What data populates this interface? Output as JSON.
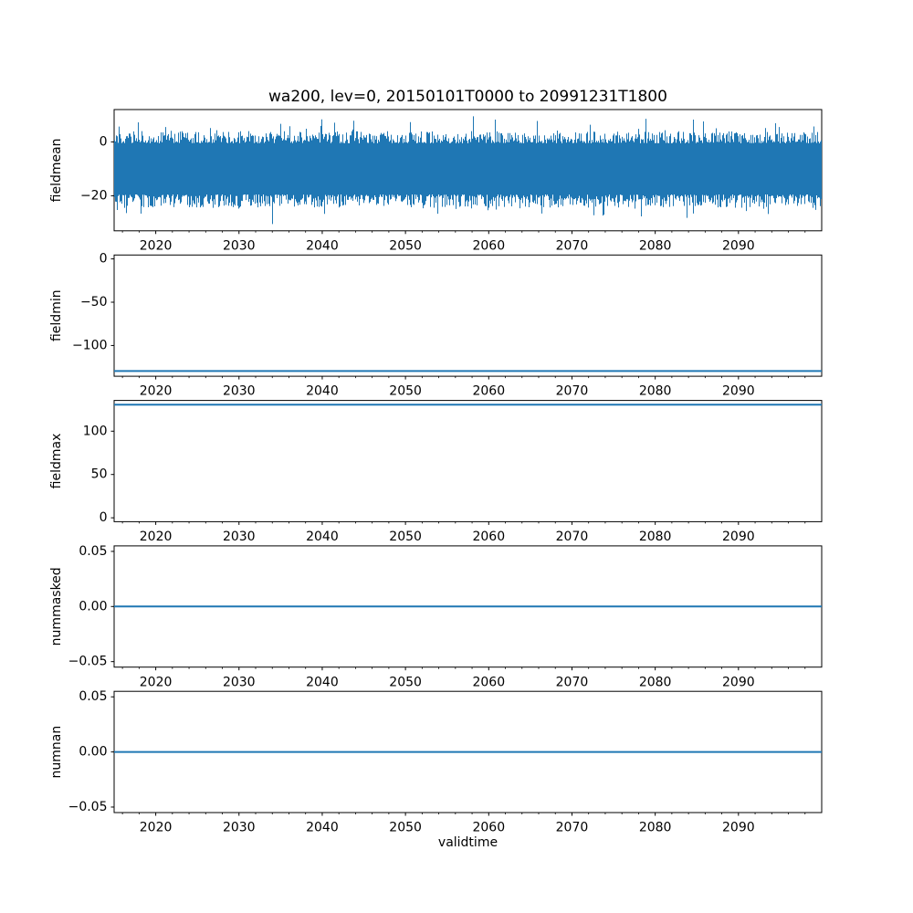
{
  "figure": {
    "title": "wa200, lev=0, 20150101T0000 to 20991231T1800",
    "xlabel": "validtime",
    "background": "#ffffff",
    "line_color": "#1f77b4",
    "axis_color": "#000000",
    "xlim": [
      2015,
      2100
    ],
    "xticks": [
      {
        "v": 2020,
        "label": "2020"
      },
      {
        "v": 2030,
        "label": "2030"
      },
      {
        "v": 2040,
        "label": "2040"
      },
      {
        "v": 2050,
        "label": "2050"
      },
      {
        "v": 2060,
        "label": "2060"
      },
      {
        "v": 2070,
        "label": "2070"
      },
      {
        "v": 2080,
        "label": "2080"
      },
      {
        "v": 2090,
        "label": "2090"
      }
    ],
    "xminor_step": 2,
    "grid": false,
    "legend": "none"
  },
  "chart_data": [
    {
      "type": "line",
      "name": "fieldmean",
      "ylabel": "fieldmean",
      "ylim": [
        -33,
        12
      ],
      "yticks": [
        {
          "v": 0,
          "label": "0"
        },
        {
          "v": -20,
          "label": "−20"
        }
      ],
      "series": {
        "kind": "noise-band",
        "seed": 20150101,
        "x_range": [
          2015,
          2100
        ],
        "core_band": [
          -19.5,
          -0.5
        ],
        "typical_high": [
          -0.5,
          4.0
        ],
        "typical_low": [
          -24.5,
          -19.5
        ],
        "spike_max": 9.5,
        "spike_min": -30.5,
        "spike_prob": 0.07,
        "description": "6-hourly fieldmean noise, 2015-01-01T00 to 2099-12-31T18, mean ≈ −10"
      }
    },
    {
      "type": "line",
      "name": "fieldmin",
      "ylabel": "fieldmin",
      "ylim": [
        -135.5,
        4.5
      ],
      "yticks": [
        {
          "v": 0,
          "label": "0"
        },
        {
          "v": -50,
          "label": "−50"
        },
        {
          "v": -100,
          "label": "−100"
        }
      ],
      "series": {
        "kind": "constant",
        "value": -129.4
      }
    },
    {
      "type": "line",
      "name": "fieldmax",
      "ylabel": "fieldmax",
      "ylim": [
        -4.5,
        135.5
      ],
      "yticks": [
        {
          "v": 100,
          "label": "100"
        },
        {
          "v": 50,
          "label": "50"
        },
        {
          "v": 0,
          "label": "0"
        }
      ],
      "series": {
        "kind": "constant",
        "value": 130.6
      }
    },
    {
      "type": "line",
      "name": "nummasked",
      "ylabel": "nummasked",
      "ylim": [
        -0.055,
        0.055
      ],
      "yticks": [
        {
          "v": 0.05,
          "label": "0.05"
        },
        {
          "v": 0.0,
          "label": "0.00"
        },
        {
          "v": -0.05,
          "label": "−0.05"
        }
      ],
      "series": {
        "kind": "constant",
        "value": 0.0
      }
    },
    {
      "type": "line",
      "name": "numnan",
      "ylabel": "numnan",
      "ylim": [
        -0.055,
        0.055
      ],
      "yticks": [
        {
          "v": 0.05,
          "label": "0.05"
        },
        {
          "v": 0.0,
          "label": "0.00"
        },
        {
          "v": -0.05,
          "label": "−0.05"
        }
      ],
      "series": {
        "kind": "constant",
        "value": 0.0
      }
    }
  ]
}
